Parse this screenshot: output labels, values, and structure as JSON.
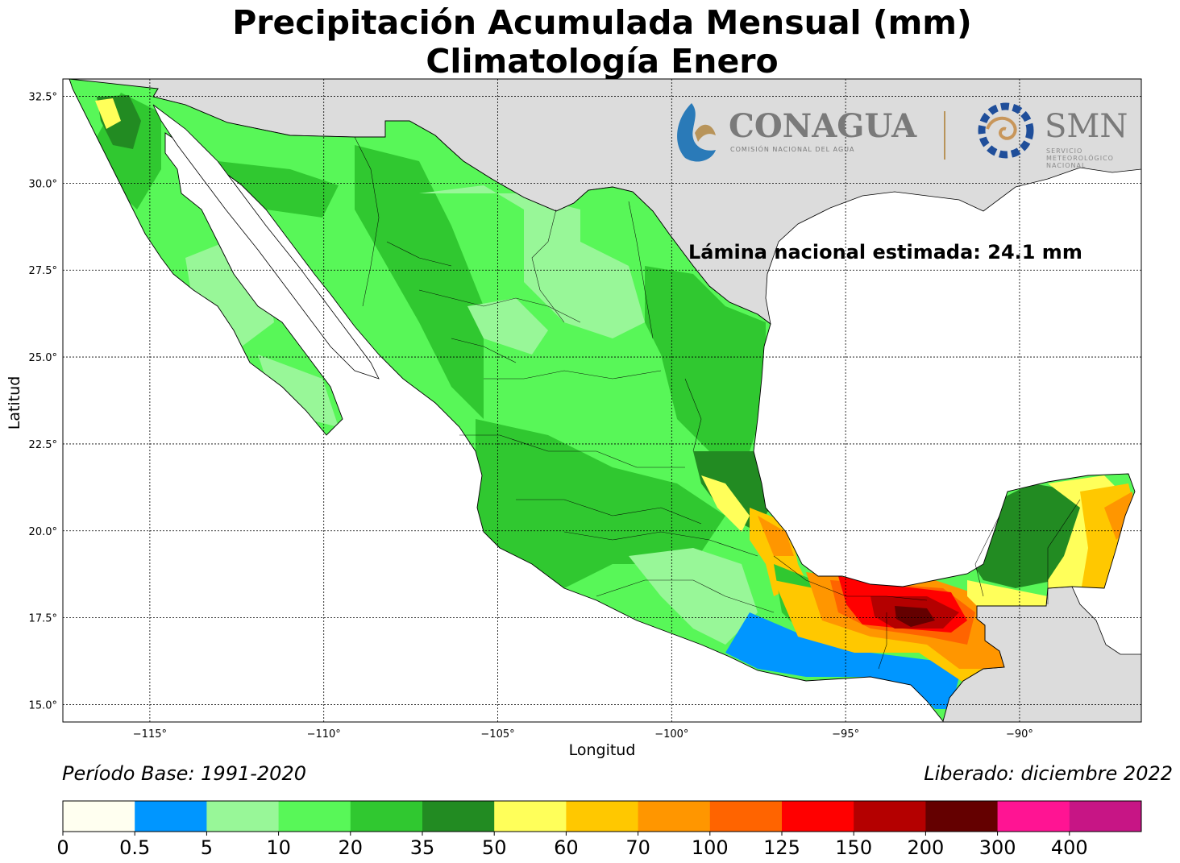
{
  "title": "Precipitación Acumulada Mensual (mm)",
  "subtitle": "Climatología Enero",
  "annotation": "Lámina nacional estimada: 24.1 mm",
  "axes": {
    "xlabel": "Longitud",
    "ylabel": "Latitud",
    "x_ticks": [
      "−115°",
      "−110°",
      "−105°",
      "−100°",
      "−95°",
      "−90°"
    ],
    "y_ticks": [
      "32.5°",
      "30.0°",
      "27.5°",
      "25.0°",
      "22.5°",
      "20.0°",
      "17.5°",
      "15.0°"
    ],
    "lon_range": [
      -117.5,
      -86.5
    ],
    "lat_range": [
      14.5,
      33.0
    ],
    "grid": true
  },
  "footer": {
    "period": "Período Base: 1991-2020",
    "released": "Liberado: diciembre 2022"
  },
  "logos": {
    "conagua": "CONAGUA",
    "conagua_sub": "COMISIÓN NACIONAL DEL AGUA",
    "smn": "SMN",
    "smn_sub": [
      "SERVICIO",
      "METEOROLÓGICO",
      "NACIONAL"
    ]
  },
  "colorbar": {
    "ticks": [
      "0",
      "0.5",
      "5",
      "10",
      "20",
      "35",
      "50",
      "60",
      "70",
      "100",
      "125",
      "150",
      "200",
      "300",
      "400"
    ],
    "colors": [
      "#fffff0",
      "#0096ff",
      "#98f798",
      "#58f758",
      "#30c830",
      "#228b22",
      "#ffff5a",
      "#ffc800",
      "#ff9600",
      "#ff6400",
      "#ff0000",
      "#b40000",
      "#640000",
      "#ff1493",
      "#c71585"
    ]
  },
  "colors": {
    "land_outside": "#dcdcdc",
    "water": "#ffffff"
  }
}
